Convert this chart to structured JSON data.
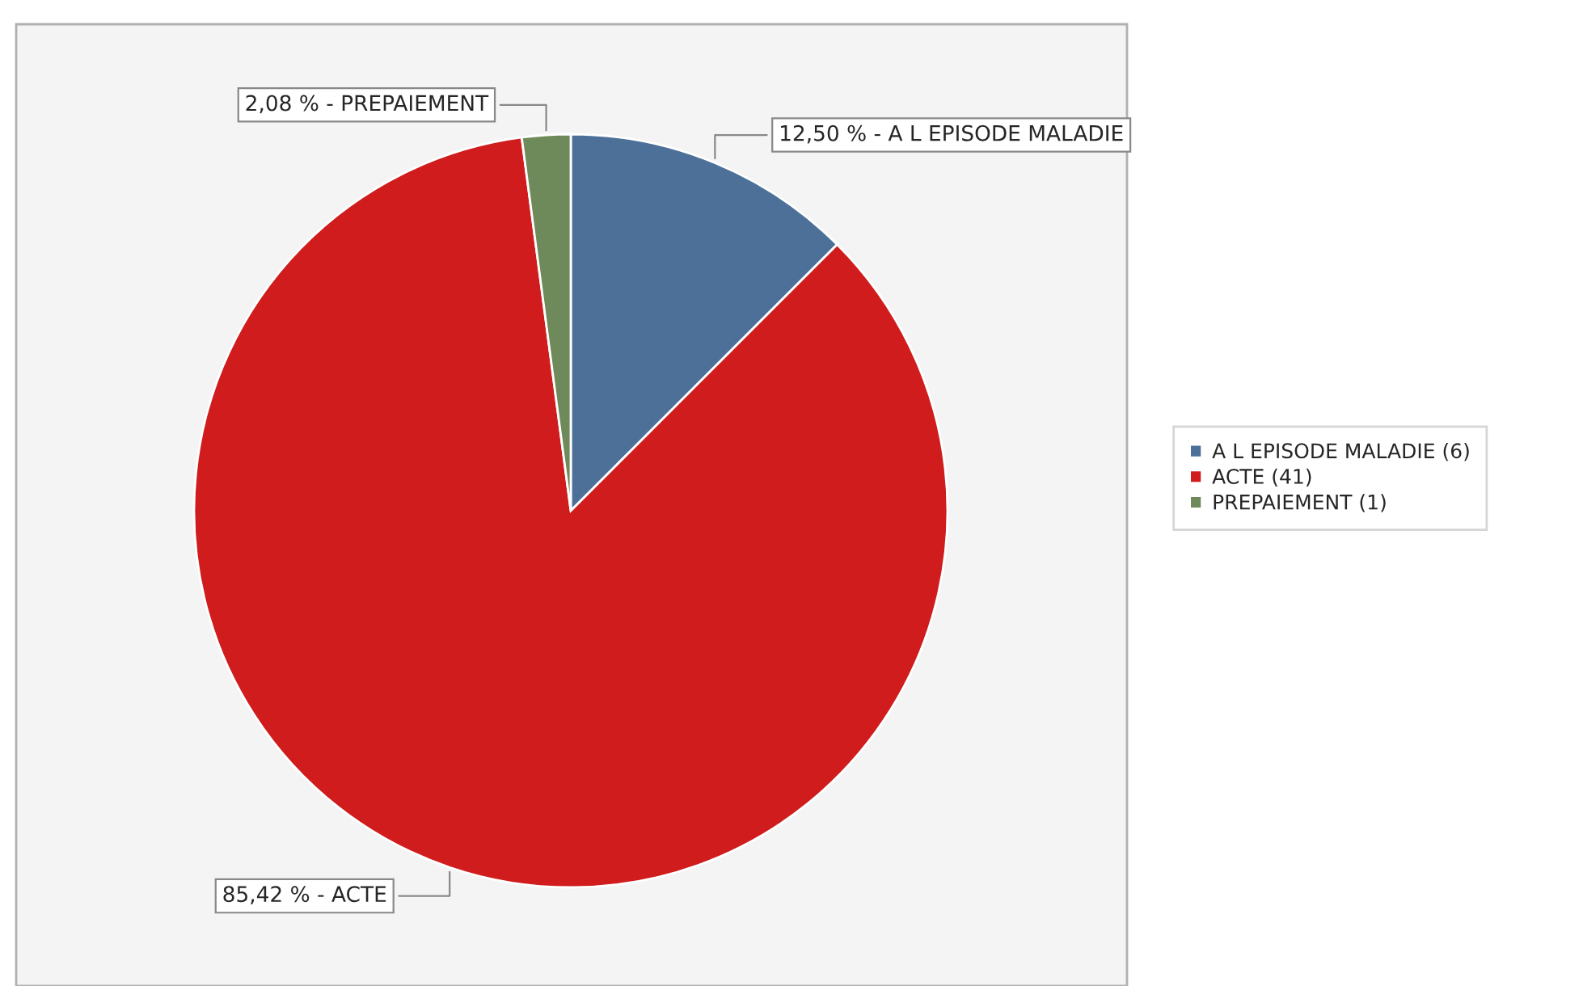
{
  "chart_data": {
    "type": "pie",
    "categories": [
      "A L EPISODE MALADIE (6)",
      "ACTE (41)",
      "PREPAIEMENT (1)"
    ],
    "values": [
      12.5,
      85.42,
      2.08
    ],
    "value_labels": [
      "12,50 % - A L EPISODE MALADIE",
      "85,42 % - ACTE",
      "2,08 % - PREPAIEMENT"
    ],
    "colors": [
      "#4d7099",
      "#d01c1c",
      "#6f8a5a"
    ],
    "legend": "right"
  }
}
